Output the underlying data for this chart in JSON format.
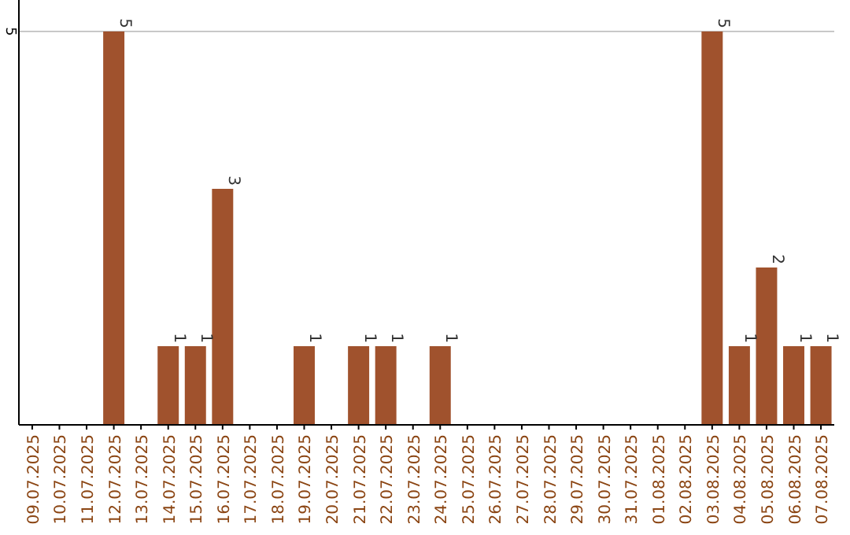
{
  "chart_data": {
    "type": "bar",
    "categories": [
      "09.07.2025",
      "10.07.2025",
      "11.07.2025",
      "12.07.2025",
      "13.07.2025",
      "14.07.2025",
      "15.07.2025",
      "16.07.2025",
      "17.07.2025",
      "18.07.2025",
      "19.07.2025",
      "20.07.2025",
      "21.07.2025",
      "22.07.2025",
      "23.07.2025",
      "24.07.2025",
      "25.07.2025",
      "26.07.2025",
      "27.07.2025",
      "28.07.2025",
      "29.07.2025",
      "30.07.2025",
      "31.07.2025",
      "01.08.2025",
      "02.08.2025",
      "03.08.2025",
      "04.08.2025",
      "05.08.2025",
      "06.08.2025",
      "07.08.2025"
    ],
    "values": [
      0,
      0,
      0,
      5,
      0,
      1,
      1,
      3,
      0,
      0,
      1,
      0,
      1,
      1,
      0,
      1,
      0,
      0,
      0,
      0,
      0,
      0,
      0,
      0,
      0,
      5,
      1,
      2,
      1,
      1
    ],
    "value_labels": [
      null,
      null,
      null,
      "5",
      null,
      "1",
      "1",
      "3",
      null,
      null,
      "1",
      null,
      "1",
      "1",
      null,
      "1",
      null,
      null,
      null,
      null,
      null,
      null,
      null,
      null,
      null,
      "5",
      "1",
      "2",
      "1",
      "1"
    ],
    "color": "#a0522d",
    "ylim": [
      0,
      5.4
    ],
    "yticks": [
      5
    ],
    "grid": "y"
  }
}
